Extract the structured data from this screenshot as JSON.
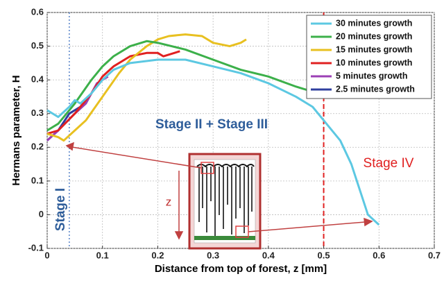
{
  "chart_data": {
    "type": "line",
    "xlabel": "Distance from top of forest, z [mm]",
    "ylabel": "Hermans parameter, H",
    "xlim": [
      0,
      0.7
    ],
    "xticks": [
      0,
      0.1,
      0.2,
      0.3,
      0.4,
      0.5,
      0.6,
      0.7
    ],
    "ylim": [
      -0.1,
      0.6
    ],
    "yticks": [
      -0.1,
      0,
      0.1,
      0.2,
      0.3,
      0.4,
      0.5,
      0.6
    ],
    "grid": true,
    "legend": "upper right",
    "series": [
      {
        "name": "30 minutes growth",
        "color": "#5cc8e2",
        "x": [
          0,
          0.02,
          0.04,
          0.05,
          0.06,
          0.08,
          0.1,
          0.12,
          0.15,
          0.2,
          0.25,
          0.3,
          0.35,
          0.4,
          0.45,
          0.48,
          0.5,
          0.53,
          0.55,
          0.57,
          0.58,
          0.6
        ],
        "values": [
          0.31,
          0.29,
          0.32,
          0.34,
          0.33,
          0.36,
          0.4,
          0.43,
          0.45,
          0.46,
          0.46,
          0.44,
          0.42,
          0.39,
          0.35,
          0.32,
          0.28,
          0.22,
          0.15,
          0.05,
          0.0,
          -0.03
        ]
      },
      {
        "name": "20 minutes growth",
        "color": "#3cb04a",
        "x": [
          0,
          0.02,
          0.05,
          0.08,
          0.1,
          0.12,
          0.15,
          0.18,
          0.2,
          0.25,
          0.3,
          0.35,
          0.4,
          0.45,
          0.47
        ],
        "values": [
          0.25,
          0.27,
          0.33,
          0.4,
          0.44,
          0.47,
          0.5,
          0.515,
          0.51,
          0.49,
          0.46,
          0.43,
          0.41,
          0.38,
          0.37
        ]
      },
      {
        "name": "15 minutes growth",
        "color": "#e8c020",
        "x": [
          0,
          0.02,
          0.03,
          0.05,
          0.07,
          0.1,
          0.13,
          0.15,
          0.18,
          0.2,
          0.22,
          0.25,
          0.28,
          0.3,
          0.33,
          0.35,
          0.36
        ],
        "values": [
          0.24,
          0.23,
          0.22,
          0.25,
          0.28,
          0.35,
          0.42,
          0.46,
          0.5,
          0.52,
          0.53,
          0.535,
          0.53,
          0.51,
          0.5,
          0.51,
          0.52
        ]
      },
      {
        "name": "10 minutes growth",
        "color": "#e02020",
        "x": [
          0,
          0.02,
          0.05,
          0.08,
          0.1,
          0.12,
          0.15,
          0.18,
          0.2,
          0.21,
          0.23,
          0.24
        ],
        "values": [
          0.24,
          0.25,
          0.3,
          0.36,
          0.41,
          0.44,
          0.47,
          0.48,
          0.48,
          0.47,
          0.48,
          0.485
        ]
      },
      {
        "name": "5 minutes growth",
        "color": "#9b3fb5",
        "x": [
          0,
          0.02,
          0.05,
          0.07,
          0.09,
          0.11
        ],
        "values": [
          0.22,
          0.25,
          0.3,
          0.33,
          0.39,
          0.41
        ]
      },
      {
        "name": "2.5 minutes growth",
        "color": "#2f3f9f",
        "x": [
          0,
          0.02,
          0.04,
          0.06,
          0.07
        ],
        "values": [
          0.22,
          0.25,
          0.3,
          0.32,
          0.34
        ]
      }
    ],
    "reference_lines": [
      {
        "x": 0.04,
        "color": "#3a6fc0",
        "style": "dotted"
      },
      {
        "x": 0.5,
        "color": "#e02020",
        "style": "dashed"
      }
    ],
    "annotations": [
      "Stage II + Stage III",
      "Stage IV",
      "Stage I",
      "z"
    ]
  }
}
